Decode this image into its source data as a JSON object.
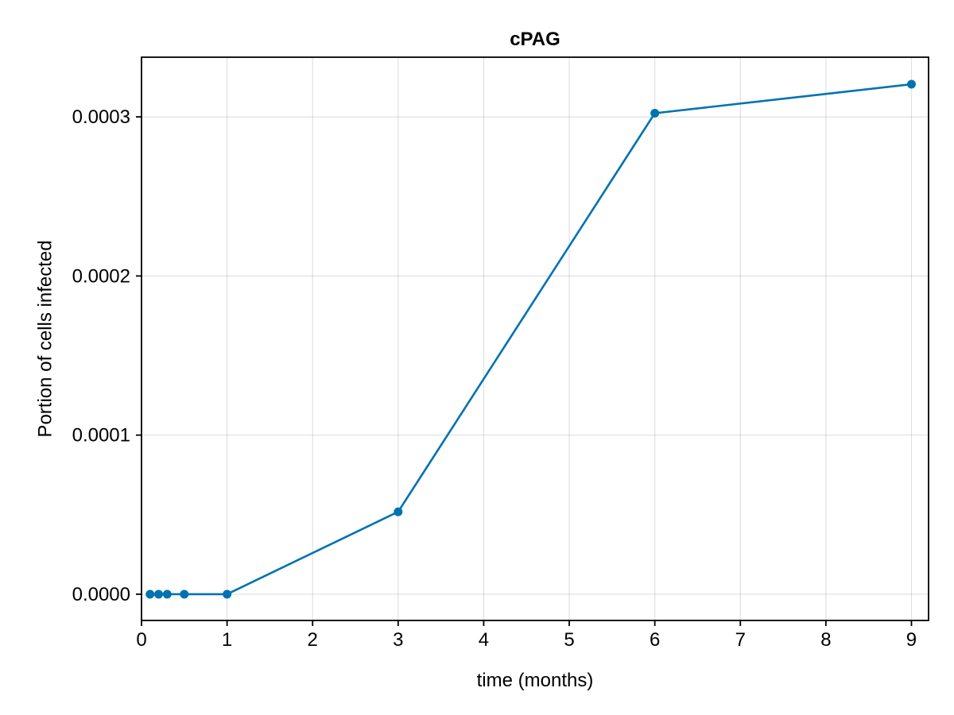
{
  "chart_data": {
    "type": "line",
    "title": "cPAG",
    "xlabel": "time (months)",
    "ylabel": "Portion of cells infected",
    "xlim": [
      0,
      9.2
    ],
    "ylim": [
      -1.65e-05,
      0.0003375
    ],
    "x_ticks": [
      0,
      1,
      2,
      3,
      4,
      5,
      6,
      7,
      8,
      9
    ],
    "x_tick_labels": [
      "0",
      "1",
      "2",
      "3",
      "4",
      "5",
      "6",
      "7",
      "8",
      "9"
    ],
    "y_ticks": [
      0,
      0.0001,
      0.0002,
      0.0003
    ],
    "y_tick_labels": [
      "0.0000",
      "0.0001",
      "0.0002",
      "0.0003"
    ],
    "grid": true,
    "series": [
      {
        "color": "#0072b2",
        "x": [
          0.1,
          0.2,
          0.3,
          0.5,
          1,
          3,
          6,
          9
        ],
        "y": [
          0,
          0,
          0,
          0,
          0,
          5.18e-05,
          0.0003023,
          0.0003205
        ]
      }
    ]
  }
}
